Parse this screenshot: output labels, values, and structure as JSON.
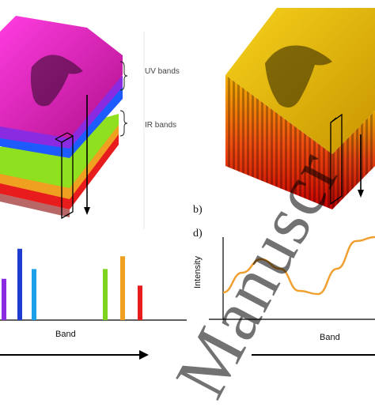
{
  "labels": {
    "uv_bands": "UV bands",
    "ir_bands": "IR bands",
    "panel_b": "b)",
    "panel_d": "d)",
    "band_axis_left": "Band",
    "band_axis_right": "Band",
    "intensity_axis": "Intensity"
  },
  "watermark": {
    "text": "Manuscr"
  },
  "colors": {
    "magenta": "#e020c0",
    "violet": "#8a2be2",
    "blue": "#1e5bff",
    "cyan": "#1ea0e8",
    "green": "#7ed31e",
    "orange": "#f0a020",
    "red": "#e81c1c",
    "gold": "#e6b800",
    "curve": "#f0a030"
  },
  "chart_data": [
    {
      "type": "bar",
      "categories": [
        "",
        "",
        "",
        "",
        "",
        "",
        ""
      ],
      "values": [
        0.55,
        0.95,
        0.68,
        0.68,
        0.85,
        0.46,
        0.47
      ],
      "colors": [
        "#8a2be2",
        "#1e3ccf",
        "#1ea0e8",
        "#7ed31e",
        "#f0a020",
        "#e81c1c",
        "#e81c1c"
      ],
      "xlabel": "Band",
      "ylabel": ""
    },
    {
      "type": "line",
      "x": [
        0,
        1,
        2,
        3,
        4,
        5,
        6,
        7,
        8
      ],
      "y": [
        0.3,
        0.55,
        0.72,
        0.6,
        0.32,
        0.28,
        0.6,
        0.95,
        1.0
      ],
      "xlabel": "Band",
      "ylabel": "Intensity"
    }
  ]
}
